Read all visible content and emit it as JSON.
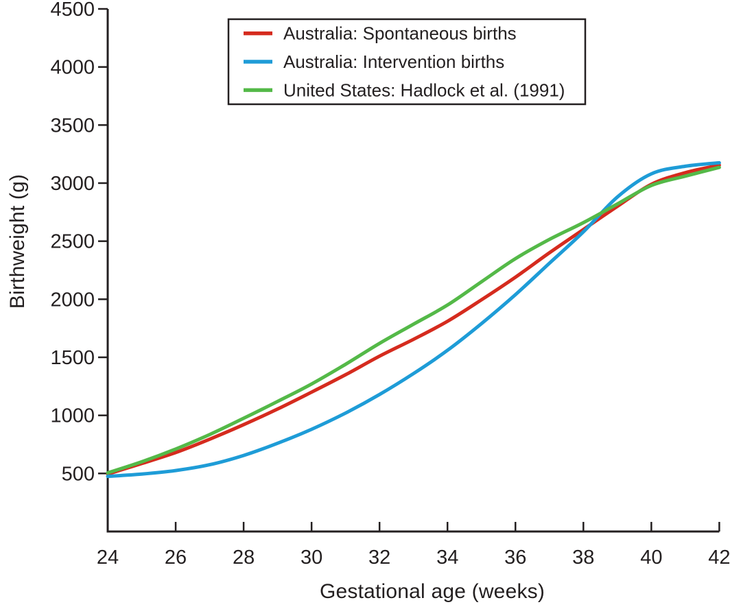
{
  "chart_data": {
    "type": "line",
    "title": "",
    "xlabel": "Gestational age (weeks)",
    "ylabel": "Birthweight (g)",
    "x": [
      24,
      25,
      26,
      27,
      28,
      29,
      30,
      31,
      32,
      33,
      34,
      35,
      36,
      37,
      38,
      39,
      40,
      41,
      42
    ],
    "x_ticks": [
      24,
      26,
      28,
      30,
      32,
      34,
      36,
      38,
      40,
      42
    ],
    "y_ticks": [
      500,
      1000,
      1500,
      2000,
      2500,
      3000,
      3500,
      4000,
      4500
    ],
    "xlim": [
      24,
      42
    ],
    "ylim": [
      0,
      4500
    ],
    "grid": false,
    "legend_position": "top-center-inside-box",
    "series": [
      {
        "name": "Australia: Spontaneous births",
        "color": "#d52b1e",
        "values": [
          495,
          585,
          680,
          795,
          920,
          1055,
          1200,
          1350,
          1510,
          1655,
          1810,
          1995,
          2190,
          2400,
          2600,
          2800,
          2990,
          3090,
          3155
        ]
      },
      {
        "name": "Australia: Intervention births",
        "color": "#1e9cd7",
        "values": [
          475,
          495,
          525,
          575,
          655,
          760,
          880,
          1020,
          1180,
          1360,
          1560,
          1790,
          2040,
          2310,
          2580,
          2880,
          3080,
          3145,
          3175
        ]
      },
      {
        "name": "United States: Hadlock et al. (1991)",
        "color": "#54b948",
        "values": [
          505,
          600,
          710,
          835,
          975,
          1120,
          1270,
          1440,
          1620,
          1785,
          1950,
          2150,
          2350,
          2515,
          2660,
          2820,
          2980,
          3060,
          3135
        ]
      }
    ]
  },
  "colors": {
    "axis": "#231f20",
    "text": "#231f20",
    "background": "#ffffff"
  }
}
